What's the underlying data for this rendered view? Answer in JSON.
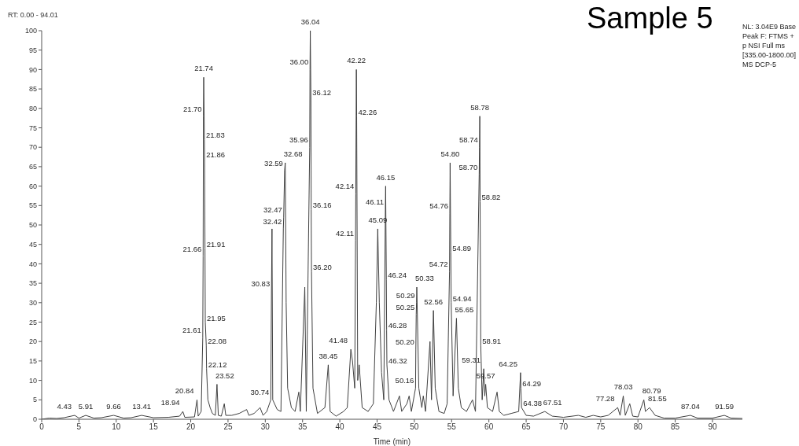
{
  "chart_data": {
    "type": "line",
    "title": "Sample 5",
    "xlabel": "Time (min)",
    "color": "#404040",
    "x": [
      0,
      1,
      2,
      3,
      4.43,
      5,
      5.91,
      7,
      8,
      9.66,
      11,
      12,
      13.41,
      15,
      17,
      18.5,
      18.94,
      19.2,
      20.5,
      20.84,
      21.0,
      21.4,
      21.61,
      21.66,
      21.7,
      21.74,
      21.83,
      21.86,
      21.91,
      21.95,
      22.08,
      22.12,
      22.3,
      22.6,
      22.9,
      23.3,
      23.52,
      23.7,
      24.1,
      24.5,
      24.7,
      25.5,
      26.5,
      27.5,
      27.8,
      28.5,
      29.3,
      29.7,
      30.2,
      30.74,
      30.83,
      30.9,
      31.0,
      31.6,
      32.1,
      32.42,
      32.47,
      32.59,
      32.68,
      32.8,
      33.0,
      33.5,
      34.0,
      34.5,
      34.7,
      35.3,
      35.5,
      35.96,
      36.0,
      36.04,
      36.12,
      36.16,
      36.2,
      36.4,
      37.0,
      38.0,
      38.45,
      38.7,
      39.5,
      40.5,
      41.0,
      41.48,
      41.7,
      42.0,
      42.11,
      42.14,
      42.22,
      42.26,
      42.4,
      42.6,
      43.0,
      43.8,
      44.5,
      44.9,
      45.09,
      45.3,
      45.6,
      45.9,
      46.11,
      46.15,
      46.24,
      46.28,
      46.32,
      46.6,
      47.2,
      48.0,
      48.3,
      49.0,
      49.3,
      49.6,
      50.16,
      50.2,
      50.25,
      50.29,
      50.33,
      50.6,
      51.0,
      51.2,
      51.5,
      52.1,
      52.3,
      52.56,
      52.8,
      53.3,
      54.0,
      54.4,
      54.72,
      54.76,
      54.8,
      54.89,
      54.94,
      55.2,
      55.65,
      55.9,
      56.3,
      57.0,
      57.8,
      58.2,
      58.7,
      58.74,
      58.78,
      58.82,
      58.91,
      59.1,
      59.31,
      59.45,
      59.57,
      59.8,
      60.5,
      61.1,
      61.4,
      62.0,
      63.0,
      64.0,
      64.25,
      64.29,
      64.38,
      65.0,
      66.0,
      67.51,
      68.5,
      70,
      72,
      73,
      74,
      75,
      76,
      77.28,
      77.6,
      78.03,
      78.3,
      78.9,
      79.3,
      80.0,
      80.79,
      81.0,
      81.55,
      82.3,
      83.5,
      85,
      87.04,
      88,
      90,
      91.59,
      92.5,
      94.01
    ],
    "values": [
      0,
      0.3,
      0.2,
      0.4,
      1,
      0.3,
      1,
      0.3,
      0.4,
      1,
      0.3,
      0.4,
      1,
      0.4,
      0.5,
      0.8,
      2,
      0.5,
      0.6,
      5,
      0.8,
      2,
      21,
      42,
      78,
      88,
      72,
      67,
      44,
      25,
      19,
      13,
      5,
      3,
      1.5,
      1,
      9,
      1,
      0.8,
      4,
      1,
      1,
      1.5,
      2.5,
      1,
      1.5,
      3,
      1,
      2,
      5,
      33,
      49,
      5,
      2.5,
      2,
      49,
      52,
      64,
      66,
      30,
      8,
      3,
      2,
      7,
      2,
      34,
      2,
      70,
      90,
      100,
      83,
      54,
      38,
      8,
      1.5,
      3,
      14,
      2,
      0.8,
      2,
      3,
      18,
      15,
      8,
      46,
      58,
      90,
      78,
      10,
      14,
      3,
      2,
      4,
      30,
      49,
      30,
      12,
      5,
      54,
      60,
      36,
      23,
      14,
      5,
      2,
      6,
      2,
      4,
      6,
      2,
      8,
      18,
      27,
      30,
      34,
      8,
      3,
      6,
      2,
      20,
      5,
      28,
      8,
      2,
      1.5,
      4,
      38,
      53,
      66,
      43,
      30,
      6,
      26,
      8,
      3,
      2,
      5,
      2,
      63,
      70,
      78,
      56,
      19,
      5,
      13,
      6,
      9,
      3,
      2,
      7,
      2,
      1,
      1.5,
      2,
      12,
      8,
      3,
      1,
      0.8,
      2,
      0.8,
      0.5,
      1,
      0.5,
      1,
      0.6,
      1,
      3,
      1,
      6,
      1,
      4,
      0.8,
      0.6,
      5,
      2,
      3,
      1,
      0.3,
      0.3,
      1,
      0.3,
      0.3,
      1,
      0.3,
      0.2
    ],
    "xlim": [
      0,
      94.01
    ],
    "xticks": [
      0,
      5,
      10,
      15,
      20,
      25,
      30,
      35,
      40,
      45,
      50,
      55,
      60,
      65,
      70,
      75,
      80,
      85,
      90
    ],
    "ylim": [
      0,
      100
    ],
    "yticks": [
      0,
      5,
      10,
      15,
      20,
      25,
      30,
      35,
      40,
      45,
      50,
      55,
      60,
      65,
      70,
      75,
      80,
      85,
      90,
      95,
      100
    ],
    "annotations": [
      "RT: 0.00 - 94.01",
      "NL: 3.04E9 Base Peak F: FTMS + p NSI Full ms [335.00-1800.00]  MS DCP-5",
      {
        "text": "4.43",
        "x": 4.43,
        "y": 1
      },
      {
        "text": "5.91",
        "x": 5.91,
        "y": 1
      },
      {
        "text": "9.66",
        "x": 9.66,
        "y": 1
      },
      {
        "text": "13.41",
        "x": 13.41,
        "y": 1
      },
      {
        "text": "18.94",
        "x": 18.94,
        "y": 2
      },
      {
        "text": "20.84",
        "x": 20.84,
        "y": 5
      },
      {
        "text": "21.61",
        "x": 21.61,
        "y": 21
      },
      {
        "text": "21.66",
        "x": 21.66,
        "y": 42
      },
      {
        "text": "21.70",
        "x": 21.7,
        "y": 78
      },
      {
        "text": "21.74",
        "x": 21.74,
        "y": 88
      },
      {
        "text": "21.83",
        "x": 21.83,
        "y": 72
      },
      {
        "text": "21.86",
        "x": 21.86,
        "y": 67
      },
      {
        "text": "21.91",
        "x": 21.91,
        "y": 44
      },
      {
        "text": "21.95",
        "x": 21.95,
        "y": 25
      },
      {
        "text": "22.08",
        "x": 22.08,
        "y": 19
      },
      {
        "text": "22.12",
        "x": 22.12,
        "y": 13
      },
      {
        "text": "23.52",
        "x": 23.52,
        "y": 9
      },
      {
        "text": "30.74",
        "x": 30.74,
        "y": 5
      },
      {
        "text": "30.83",
        "x": 30.83,
        "y": 33
      },
      {
        "text": "32.42",
        "x": 32.42,
        "y": 49
      },
      {
        "text": "32.47",
        "x": 32.47,
        "y": 52
      },
      {
        "text": "32.59",
        "x": 32.59,
        "y": 64
      },
      {
        "text": "32.68",
        "x": 32.68,
        "y": 66
      },
      {
        "text": "35.96",
        "x": 35.96,
        "y": 70
      },
      {
        "text": "36.00",
        "x": 36.0,
        "y": 90
      },
      {
        "text": "36.04",
        "x": 36.04,
        "y": 100
      },
      {
        "text": "36.12",
        "x": 36.12,
        "y": 83
      },
      {
        "text": "36.16",
        "x": 36.16,
        "y": 54
      },
      {
        "text": "36.20",
        "x": 36.2,
        "y": 38
      },
      {
        "text": "38.45",
        "x": 38.45,
        "y": 14
      },
      {
        "text": "41.48",
        "x": 41.48,
        "y": 18
      },
      {
        "text": "42.11",
        "x": 42.11,
        "y": 46
      },
      {
        "text": "42.14",
        "x": 42.14,
        "y": 58
      },
      {
        "text": "42.22",
        "x": 42.22,
        "y": 90
      },
      {
        "text": "42.26",
        "x": 42.26,
        "y": 78
      },
      {
        "text": "45.09",
        "x": 45.09,
        "y": 49
      },
      {
        "text": "46.11",
        "x": 46.11,
        "y": 54
      },
      {
        "text": "46.15",
        "x": 46.15,
        "y": 60
      },
      {
        "text": "46.24",
        "x": 46.24,
        "y": 36
      },
      {
        "text": "46.28",
        "x": 46.28,
        "y": 23
      },
      {
        "text": "46.32",
        "x": 46.32,
        "y": 14
      },
      {
        "text": "50.16",
        "x": 50.16,
        "y": 8
      },
      {
        "text": "50.20",
        "x": 50.2,
        "y": 18
      },
      {
        "text": "50.25",
        "x": 50.25,
        "y": 27
      },
      {
        "text": "50.29",
        "x": 50.29,
        "y": 30
      },
      {
        "text": "50.33",
        "x": 50.33,
        "y": 34
      },
      {
        "text": "52.56",
        "x": 52.56,
        "y": 28
      },
      {
        "text": "54.72",
        "x": 54.72,
        "y": 38
      },
      {
        "text": "54.76",
        "x": 54.76,
        "y": 53
      },
      {
        "text": "54.80",
        "x": 54.8,
        "y": 66
      },
      {
        "text": "54.89",
        "x": 54.89,
        "y": 43
      },
      {
        "text": "54.94",
        "x": 54.94,
        "y": 30
      },
      {
        "text": "55.65",
        "x": 55.65,
        "y": 26
      },
      {
        "text": "58.70",
        "x": 58.7,
        "y": 63
      },
      {
        "text": "58.74",
        "x": 58.74,
        "y": 70
      },
      {
        "text": "58.78",
        "x": 58.78,
        "y": 78
      },
      {
        "text": "58.82",
        "x": 58.82,
        "y": 56
      },
      {
        "text": "58.91",
        "x": 58.91,
        "y": 19
      },
      {
        "text": "59.31",
        "x": 59.31,
        "y": 13
      },
      {
        "text": "59.57",
        "x": 59.57,
        "y": 9
      },
      {
        "text": "64.25",
        "x": 64.25,
        "y": 12
      },
      {
        "text": "64.29",
        "x": 64.29,
        "y": 8
      },
      {
        "text": "64.38",
        "x": 64.38,
        "y": 3
      },
      {
        "text": "67.51",
        "x": 67.51,
        "y": 2
      },
      {
        "text": "77.28",
        "x": 77.28,
        "y": 3
      },
      {
        "text": "78.03",
        "x": 78.03,
        "y": 6
      },
      {
        "text": "80.79",
        "x": 80.79,
        "y": 5
      },
      {
        "text": "81.55",
        "x": 81.55,
        "y": 3
      },
      {
        "text": "87.04",
        "x": 87.04,
        "y": 1
      },
      {
        "text": "91.59",
        "x": 91.59,
        "y": 1
      }
    ]
  }
}
